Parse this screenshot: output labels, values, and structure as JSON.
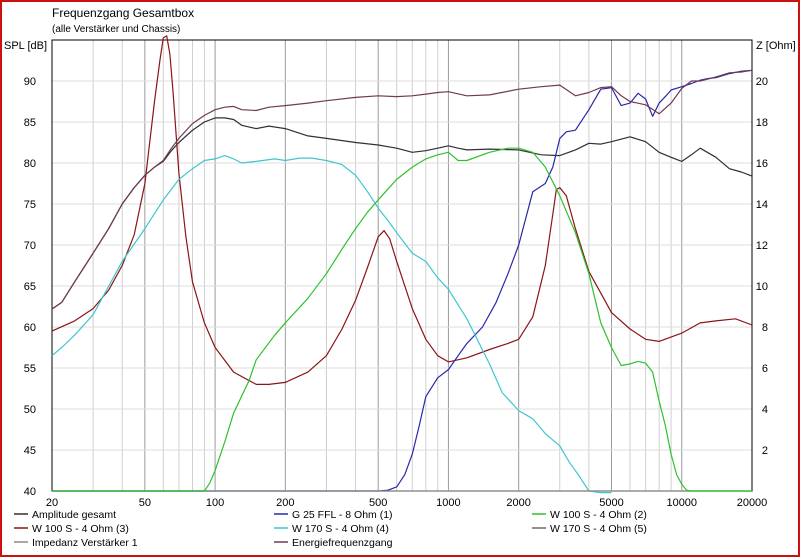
{
  "chart_data": {
    "type": "line",
    "title": "Frequenzgang Gesamtbox",
    "subtitle": "(alle Verstärker und Chassis)",
    "ylabel_left": "SPL [dB]",
    "ylabel_right": "Z [Ohm]",
    "x_scale": "log",
    "xlim": [
      20,
      20000
    ],
    "ylim_left": [
      40,
      95
    ],
    "ylim_right": [
      0,
      22
    ],
    "x_ticks": [
      "20",
      "50",
      "100",
      "200",
      "500",
      "1000",
      "2000",
      "5000",
      "10000",
      "20000"
    ],
    "y_ticks_left": [
      "40",
      "45",
      "50",
      "55",
      "60",
      "65",
      "70",
      "75",
      "80",
      "85",
      "90"
    ],
    "y_ticks_right": [
      "2",
      "4",
      "6",
      "8",
      "10",
      "12",
      "14",
      "16",
      "18",
      "20"
    ],
    "grid": true,
    "series": [
      {
        "name": "Amplitude gesamt",
        "axis": "left",
        "color": "#303030",
        "x": [
          20,
          22,
          25,
          30,
          35,
          40,
          45,
          50,
          55,
          60,
          65,
          70,
          80,
          90,
          100,
          110,
          120,
          130,
          150,
          170,
          200,
          250,
          300,
          400,
          500,
          600,
          700,
          800,
          900,
          1000,
          1100,
          1200,
          1500,
          2000,
          2500,
          3000,
          3500,
          4000,
          4500,
          5000,
          6000,
          7000,
          8000,
          9000,
          10000,
          11000,
          12000,
          14000,
          16000,
          18000,
          20000
        ],
        "y": [
          62.2,
          63,
          65.5,
          69,
          72,
          75,
          77,
          78.5,
          79.5,
          80.2,
          81.5,
          82.5,
          84,
          85,
          85.5,
          85.5,
          85.3,
          84.6,
          84.2,
          84.5,
          84.2,
          83.3,
          83,
          82.5,
          82.2,
          81.8,
          81.3,
          81.5,
          81.8,
          82.1,
          81.8,
          81.6,
          81.7,
          81.6,
          81,
          80.9,
          81.6,
          82.4,
          82.3,
          82.6,
          83.2,
          82.6,
          81.3,
          80.7,
          80.2,
          81,
          81.8,
          80.7,
          79.3,
          78.9,
          78.4
        ]
      },
      {
        "name": "W 100 S - 4 Ohm (3)",
        "axis": "right",
        "color": "#8b1515",
        "x": [
          20,
          25,
          30,
          35,
          40,
          45,
          50,
          55,
          58,
          60,
          62,
          64,
          66,
          70,
          75,
          80,
          90,
          100,
          120,
          150,
          170,
          200,
          250,
          300,
          350,
          400,
          450,
          500,
          530,
          560,
          600,
          700,
          800,
          900,
          1000,
          1200,
          1500,
          1800,
          2000,
          2300,
          2600,
          2800,
          2900,
          3000,
          3200,
          3500,
          4000,
          5000,
          6000,
          7000,
          8000,
          10000,
          12000,
          14000,
          17000,
          20000
        ],
        "y": [
          7.8,
          8.3,
          8.9,
          9.8,
          11,
          12.5,
          15,
          19,
          21,
          22.1,
          22.2,
          21.3,
          19.5,
          15.5,
          12.4,
          10.2,
          8.2,
          7,
          5.8,
          5.2,
          5.2,
          5.3,
          5.8,
          6.6,
          7.9,
          9.3,
          10.9,
          12.4,
          12.7,
          12.3,
          11.2,
          8.9,
          7.4,
          6.6,
          6.3,
          6.5,
          6.9,
          7.2,
          7.4,
          8.5,
          11,
          13.5,
          14.7,
          14.8,
          14.4,
          12.8,
          10.7,
          8.7,
          7.9,
          7.4,
          7.3,
          7.7,
          8.2,
          8.3,
          8.4,
          8.1
        ]
      },
      {
        "name": "Impedanz Verstärker 1",
        "axis": "left",
        "color": "#8a8a8a",
        "x": [
          20,
          20000
        ],
        "y": [
          40,
          40
        ]
      },
      {
        "name": "G 25 FFL - 8 Ohm (1)",
        "axis": "left",
        "color": "#2828a8",
        "x": [
          20,
          500,
          550,
          600,
          650,
          700,
          750,
          800,
          900,
          1000,
          1100,
          1200,
          1400,
          1600,
          1800,
          2000,
          2300,
          2600,
          2800,
          3000,
          3200,
          3500,
          4000,
          4500,
          5000,
          5500,
          6000,
          6500,
          7000,
          7500,
          8000,
          8500,
          9000,
          10000,
          11000,
          12000,
          13000,
          14000,
          16000,
          18000,
          20000
        ],
        "y": [
          40,
          40,
          40.1,
          40.5,
          42,
          44.5,
          48,
          51.5,
          53.8,
          54.8,
          56.5,
          58,
          60,
          63,
          66.5,
          70,
          76.5,
          77.5,
          79.5,
          83,
          83.8,
          84,
          86.5,
          89,
          89.2,
          87,
          87.3,
          88.5,
          87.8,
          85.7,
          87.3,
          88.1,
          88.9,
          89.3,
          89.7,
          90.1,
          90.3,
          90.4,
          90.9,
          91.2,
          91.3
        ]
      },
      {
        "name": "W 170 S - 4 Ohm (4)",
        "axis": "left",
        "color": "#3fc6cf",
        "x": [
          20,
          22,
          25,
          30,
          40,
          50,
          60,
          70,
          80,
          90,
          100,
          110,
          120,
          130,
          150,
          180,
          200,
          230,
          260,
          300,
          350,
          400,
          450,
          500,
          550,
          600,
          700,
          800,
          900,
          1000,
          1200,
          1500,
          1700,
          2000,
          2300,
          2600,
          3000,
          3300,
          3600,
          4000,
          4500,
          5000
        ],
        "y": [
          56.5,
          57.5,
          59,
          61.5,
          68,
          72,
          75.5,
          78,
          79.3,
          80.3,
          80.5,
          80.9,
          80.5,
          80,
          80.2,
          80.5,
          80.3,
          80.6,
          80.6,
          80.3,
          79.8,
          78.5,
          76.5,
          74.5,
          73,
          71.5,
          69,
          68,
          66,
          64.6,
          61,
          55.5,
          52,
          49.8,
          48.8,
          47,
          45.5,
          43.5,
          42,
          40,
          39.8,
          39.8
        ]
      },
      {
        "name": "W 170 S - 4 Ohm (5)",
        "axis": "left",
        "color": "#8a8a8a",
        "x": [
          20,
          20000
        ],
        "y": [
          40,
          40
        ]
      },
      {
        "name": "W 100 S - 4 Ohm (2)",
        "axis": "left",
        "color": "#2dc12d",
        "x": [
          20,
          90,
          95,
          100,
          110,
          120,
          140,
          150,
          180,
          200,
          250,
          300,
          350,
          400,
          450,
          500,
          600,
          700,
          800,
          900,
          1000,
          1100,
          1200,
          1500,
          1800,
          2000,
          2300,
          2600,
          3000,
          3500,
          4000,
          4500,
          5000,
          5500,
          6000,
          6500,
          7000,
          7500,
          8000,
          8500,
          9000,
          9500,
          10000,
          10500,
          11000,
          20000
        ],
        "y": [
          40,
          40,
          41,
          42.5,
          46,
          49.5,
          53.5,
          56,
          59,
          60.5,
          63.5,
          66.5,
          69.5,
          72,
          74,
          75.5,
          78,
          79.5,
          80.5,
          81,
          81.3,
          80.3,
          80.3,
          81.3,
          81.8,
          81.8,
          81.3,
          79.5,
          76,
          71.5,
          66.5,
          60.5,
          57.5,
          55.3,
          55.5,
          55.8,
          55.6,
          54.5,
          51,
          48,
          44.5,
          42,
          40.8,
          40.1,
          40,
          40
        ]
      },
      {
        "name": "Energiefrequenzgang",
        "axis": "left",
        "color": "#6f3a55",
        "x": [
          20,
          22,
          25,
          30,
          35,
          40,
          45,
          50,
          55,
          60,
          65,
          70,
          80,
          90,
          100,
          110,
          120,
          130,
          150,
          170,
          200,
          250,
          300,
          400,
          500,
          600,
          700,
          800,
          900,
          1000,
          1200,
          1500,
          2000,
          2500,
          3000,
          3500,
          4000,
          4500,
          5000,
          5500,
          6000,
          7000,
          8000,
          9000,
          10000,
          11000,
          12000,
          14000,
          16000,
          18000,
          20000
        ],
        "y": [
          62.2,
          63,
          65.5,
          69,
          72,
          75,
          77,
          78.5,
          79.5,
          80.3,
          81.8,
          83,
          84.8,
          85.8,
          86.5,
          86.8,
          86.9,
          86.5,
          86.4,
          86.8,
          87,
          87.3,
          87.6,
          88,
          88.2,
          88.1,
          88.2,
          88.4,
          88.6,
          88.7,
          88.2,
          88.3,
          89,
          89.3,
          89.5,
          88.2,
          88.6,
          89.2,
          89.3,
          88.2,
          87.5,
          87.1,
          86,
          87.3,
          89.1,
          90,
          90,
          90.5,
          91,
          91.1,
          91.3
        ]
      }
    ],
    "legend": [
      {
        "label": "Amplitude gesamt",
        "color": "#303030"
      },
      {
        "label": "G 25 FFL - 8 Ohm (1)",
        "color": "#2828a8"
      },
      {
        "label": "W 100 S - 4 Ohm (2)",
        "color": "#2dc12d"
      },
      {
        "label": "W 100 S - 4 Ohm (3)",
        "color": "#8b1515"
      },
      {
        "label": "W 170 S - 4 Ohm (4)",
        "color": "#3fc6cf"
      },
      {
        "label": "W 170 S - 4 Ohm (5)",
        "color": "#6a6a6a"
      },
      {
        "label": "Impedanz Verstärker 1",
        "color": "#8a8a8a"
      },
      {
        "label": "Energiefrequenzgang",
        "color": "#6f3a55"
      }
    ],
    "legend_placement": "bottom"
  }
}
